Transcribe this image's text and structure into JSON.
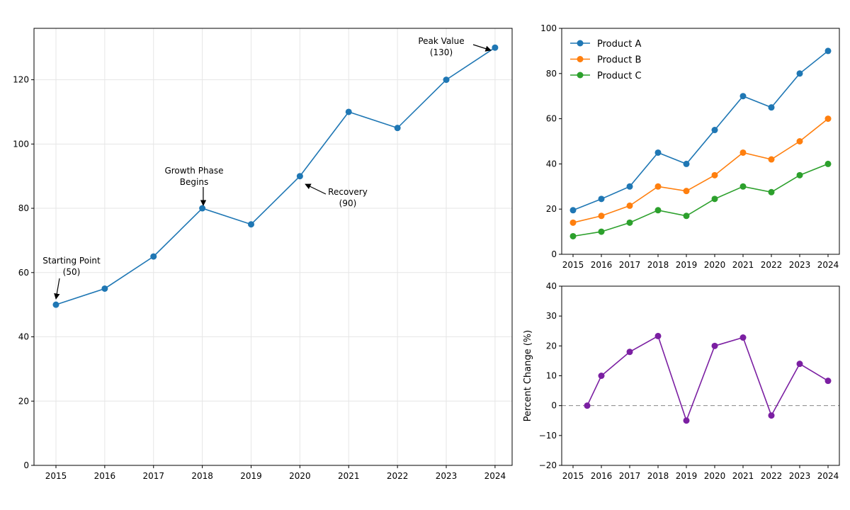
{
  "chart_data": [
    {
      "type": "line",
      "x": [
        2015,
        2016,
        2017,
        2018,
        2019,
        2020,
        2021,
        2022,
        2023,
        2024
      ],
      "series": [
        {
          "values": [
            50,
            55,
            65,
            80,
            75,
            90,
            110,
            105,
            120,
            130
          ],
          "color": "#1f77b4"
        }
      ],
      "xlim": [
        2014.55,
        2024.35
      ],
      "ylim": [
        0,
        136
      ],
      "yticks": [
        0,
        20,
        40,
        60,
        80,
        100,
        120
      ],
      "grid": true,
      "annotations": [
        {
          "lines": [
            "Starting Point",
            "(50)"
          ],
          "x": 2015,
          "y": 50
        },
        {
          "lines": [
            "Growth Phase",
            "Begins"
          ],
          "x": 2018,
          "y": 80
        },
        {
          "lines": [
            "Recovery",
            "(90)"
          ],
          "x": 2020,
          "y": 90
        },
        {
          "lines": [
            "Peak Value",
            "(130)"
          ],
          "x": 2024,
          "y": 130
        }
      ]
    },
    {
      "type": "line",
      "x": [
        2015,
        2016,
        2017,
        2018,
        2019,
        2020,
        2021,
        2022,
        2023,
        2024
      ],
      "series": [
        {
          "name": "Product A",
          "values": [
            19.5,
            24.5,
            30,
            45,
            40,
            55,
            70,
            65,
            80,
            90
          ],
          "color": "#1f77b4"
        },
        {
          "name": "Product B",
          "values": [
            14,
            17,
            21.5,
            30,
            28,
            35,
            45,
            42,
            50,
            60
          ],
          "color": "#ff7f0e"
        },
        {
          "name": "Product C",
          "values": [
            8,
            10,
            14,
            19.5,
            17,
            24.5,
            30,
            27.5,
            35,
            40
          ],
          "color": "#2ca02c"
        }
      ],
      "xlim": [
        2014.6,
        2024.4
      ],
      "ylim": [
        0,
        100
      ],
      "yticks": [
        0,
        20,
        40,
        60,
        80,
        100
      ],
      "legend": "top-left",
      "grid": false
    },
    {
      "type": "line",
      "x": [
        2015.5,
        2016,
        2017,
        2018,
        2019,
        2020,
        2021,
        2022,
        2023,
        2024
      ],
      "xticks": [
        2015,
        2016,
        2017,
        2018,
        2019,
        2020,
        2021,
        2022,
        2023,
        2024
      ],
      "series": [
        {
          "values": [
            0,
            10,
            18,
            23.3,
            -5,
            20,
            22.8,
            -3.3,
            14,
            8.3
          ],
          "color": "#7b1fa2"
        }
      ],
      "xlim": [
        2014.6,
        2024.4
      ],
      "ylim": [
        -20,
        40
      ],
      "yticks": [
        -20,
        -10,
        0,
        10,
        20,
        30,
        40
      ],
      "ylabel": "Percent Change (%)",
      "zero_line": true,
      "grid": false
    }
  ]
}
